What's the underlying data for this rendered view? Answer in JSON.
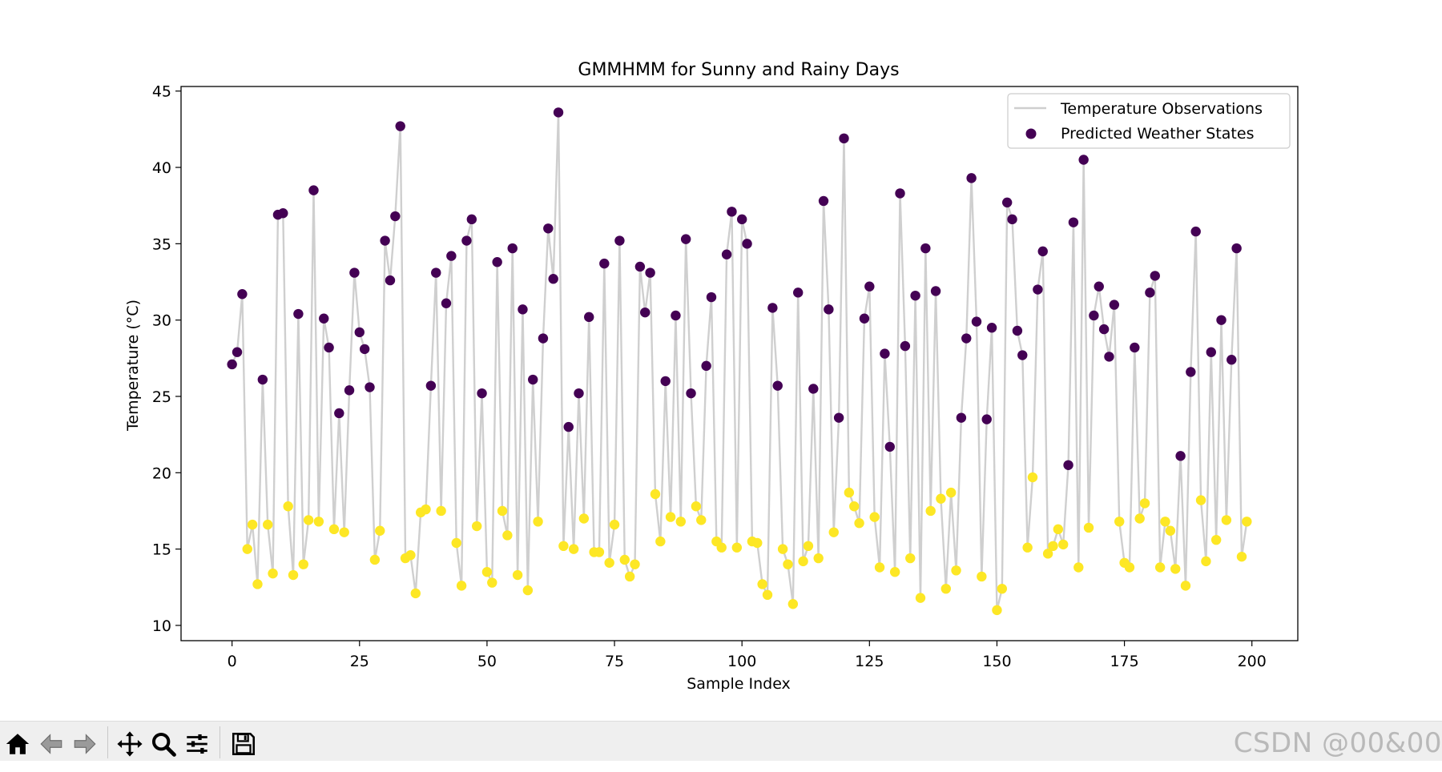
{
  "toolbar": {
    "home": "home-icon",
    "back": "back-arrow-icon",
    "forward": "forward-arrow-icon",
    "pan": "pan-move-icon",
    "zoom": "zoom-magnifier-icon",
    "configure": "configure-subplots-icon",
    "save": "save-disk-icon"
  },
  "watermark": "CSDN @00&00",
  "colors": {
    "line": "#cfcfcf",
    "state_high": "#440154",
    "state_low": "#fde725"
  },
  "chart_data": {
    "type": "line+scatter",
    "title": "GMMHMM for Sunny and Rainy Days",
    "xlabel": "Sample Index",
    "ylabel": "Temperature (°C)",
    "xlim": [
      -10,
      209
    ],
    "ylim": [
      9,
      45.3
    ],
    "xticks": [
      0,
      25,
      50,
      75,
      100,
      125,
      150,
      175,
      200
    ],
    "yticks": [
      10,
      15,
      20,
      25,
      30,
      35,
      40,
      45
    ],
    "legend": {
      "position": "top-right",
      "entries": [
        "Temperature Observations",
        "Predicted Weather States"
      ]
    },
    "series": [
      {
        "name": "Temperature Observations",
        "kind": "line",
        "values": [
          27.1,
          27.9,
          31.7,
          15.0,
          16.6,
          12.7,
          26.1,
          16.6,
          13.4,
          36.9,
          37.0,
          17.8,
          13.3,
          30.4,
          14.0,
          16.9,
          38.5,
          16.8,
          30.1,
          28.2,
          16.3,
          23.9,
          16.1,
          25.4,
          33.1,
          29.2,
          28.1,
          25.6,
          14.3,
          16.2,
          35.2,
          32.6,
          36.8,
          42.7,
          14.4,
          14.6,
          12.1,
          17.4,
          17.6,
          25.7,
          33.1,
          17.5,
          31.1,
          34.2,
          15.4,
          12.6,
          35.2,
          36.6,
          16.5,
          25.2,
          13.5,
          12.8,
          33.8,
          17.5,
          15.9,
          34.7,
          13.3,
          30.7,
          12.3,
          26.1,
          16.8,
          28.8,
          36.0,
          32.7,
          43.6,
          15.2,
          23.0,
          15.0,
          25.2,
          17.0,
          30.2,
          14.8,
          14.8,
          33.7,
          14.1,
          16.6,
          35.2,
          14.3,
          13.2,
          14.0,
          33.5,
          30.5,
          33.1,
          18.6,
          15.5,
          26.0,
          17.1,
          30.3,
          16.8,
          35.3,
          25.2,
          17.8,
          16.9,
          27.0,
          31.5,
          15.5,
          15.1,
          34.3,
          37.1,
          15.1,
          36.6,
          35.0,
          15.5,
          15.4,
          12.7,
          12.0,
          30.8,
          25.7,
          15.0,
          14.0,
          11.4,
          31.8,
          14.2,
          15.2,
          25.5,
          14.4,
          37.8,
          30.7,
          16.1,
          23.6,
          41.9,
          18.7,
          17.8,
          16.7,
          30.1,
          32.2,
          17.1,
          13.8,
          27.8,
          21.7,
          13.5,
          38.3,
          28.3,
          14.4,
          31.6,
          11.8,
          34.7,
          17.5,
          31.9,
          18.3,
          12.4,
          18.7,
          13.6,
          23.6,
          28.8,
          39.3,
          29.9,
          13.2,
          23.5,
          29.5,
          11.0,
          12.4,
          37.7,
          36.6,
          29.3,
          27.7,
          15.1,
          19.7,
          32.0,
          34.5,
          14.7,
          15.2,
          16.3,
          15.3,
          20.5,
          36.4,
          13.8,
          40.5,
          16.4,
          30.3,
          32.2,
          29.4,
          27.6,
          31.0,
          16.8,
          14.1,
          13.8,
          28.2,
          17.0,
          18.0,
          31.8,
          32.9,
          13.8,
          16.8,
          16.2,
          13.7,
          21.1,
          12.6,
          26.6,
          35.8,
          18.2,
          14.2,
          27.9,
          15.6,
          30.0,
          16.9,
          27.4,
          34.7,
          14.5,
          16.8
        ]
      },
      {
        "name": "Predicted Weather States",
        "kind": "scatter",
        "states": [
          1,
          1,
          1,
          0,
          0,
          0,
          1,
          0,
          0,
          1,
          1,
          0,
          0,
          1,
          0,
          0,
          1,
          0,
          1,
          1,
          0,
          1,
          0,
          1,
          1,
          1,
          1,
          1,
          0,
          0,
          1,
          1,
          1,
          1,
          0,
          0,
          0,
          0,
          0,
          1,
          1,
          0,
          1,
          1,
          0,
          0,
          1,
          1,
          0,
          1,
          0,
          0,
          1,
          0,
          0,
          1,
          0,
          1,
          0,
          1,
          0,
          1,
          1,
          1,
          1,
          0,
          1,
          0,
          1,
          0,
          1,
          0,
          0,
          1,
          0,
          0,
          1,
          0,
          0,
          0,
          1,
          1,
          1,
          0,
          0,
          1,
          0,
          1,
          0,
          1,
          1,
          0,
          0,
          1,
          1,
          0,
          0,
          1,
          1,
          0,
          1,
          1,
          0,
          0,
          0,
          0,
          1,
          1,
          0,
          0,
          0,
          1,
          0,
          0,
          1,
          0,
          1,
          1,
          0,
          1,
          1,
          0,
          0,
          0,
          1,
          1,
          0,
          0,
          1,
          1,
          0,
          1,
          1,
          0,
          1,
          0,
          1,
          0,
          1,
          0,
          0,
          0,
          0,
          1,
          1,
          1,
          1,
          0,
          1,
          1,
          0,
          0,
          1,
          1,
          1,
          1,
          0,
          0,
          1,
          1,
          0,
          0,
          0,
          0,
          1,
          1,
          0,
          1,
          0,
          1,
          1,
          1,
          1,
          1,
          0,
          0,
          0,
          1,
          0,
          0,
          1,
          1,
          0,
          0,
          0,
          0,
          1,
          0,
          1,
          1,
          0,
          0,
          1,
          0,
          1,
          0,
          1,
          1,
          0,
          0
        ]
      }
    ]
  }
}
